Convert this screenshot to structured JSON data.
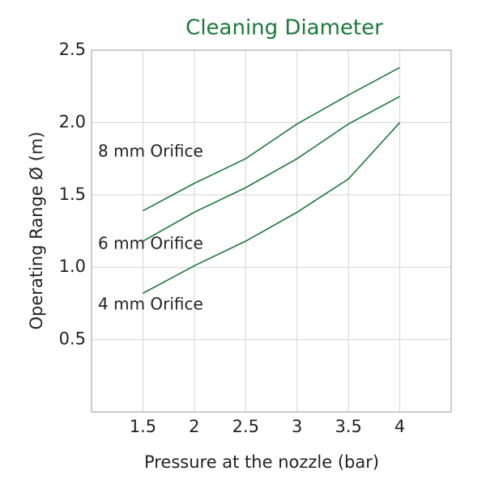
{
  "chart_data": {
    "type": "line",
    "title": "Cleaning Diameter",
    "x_label": "Pressure at the nozzle (bar)",
    "y_label": "Operating Range Ø (m)",
    "x": [
      1.5,
      2,
      2.5,
      3,
      3.5,
      4
    ],
    "series": [
      {
        "name": "8 mm Orifice",
        "color": "#1a7a3a",
        "values": [
          1.39,
          1.58,
          1.75,
          1.99,
          2.19,
          2.38
        ]
      },
      {
        "name": "6 mm Orifice",
        "color": "#1a7a3a",
        "values": [
          1.18,
          1.38,
          1.55,
          1.75,
          1.99,
          2.18
        ]
      },
      {
        "name": "4 mm Orifice",
        "color": "#1a7a3a",
        "values": [
          0.82,
          1.01,
          1.18,
          1.38,
          1.61,
          2.0
        ]
      }
    ],
    "xlim": [
      1,
      4.5
    ],
    "xticks": [
      1.5,
      2,
      2.5,
      3,
      3.5,
      4
    ],
    "ylim": [
      0,
      2.5
    ],
    "yticks": [
      0.5,
      {
        "value": 1,
        "label": "1.0"
      },
      1.5,
      {
        "value": 2,
        "label": "2.0"
      },
      2.5
    ],
    "grid": true
  }
}
